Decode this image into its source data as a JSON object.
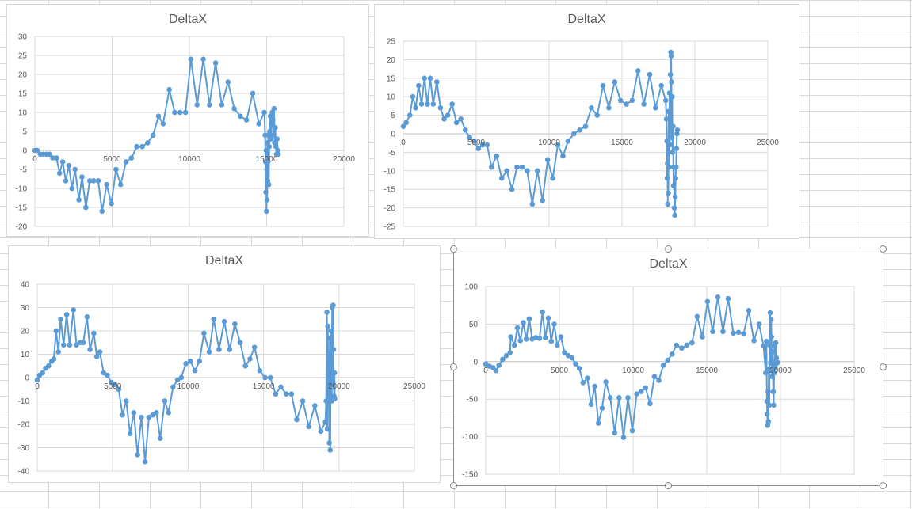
{
  "colors": {
    "series": "#5b9bd5",
    "grid": "#d9d9d9",
    "text": "#595959"
  },
  "chart_data": [
    {
      "type": "scatter",
      "title": "DeltaX",
      "xlabel": "",
      "ylabel": "",
      "xlim": [
        0,
        20000
      ],
      "ylim": [
        -20,
        30
      ],
      "xticks": [
        0,
        5000,
        10000,
        15000,
        20000
      ],
      "yticks": [
        -20,
        -15,
        -10,
        -5,
        0,
        5,
        10,
        15,
        20,
        25,
        30
      ],
      "grid": true,
      "legend": "none",
      "points": [
        [
          0,
          0
        ],
        [
          150,
          0
        ],
        [
          350,
          -1
        ],
        [
          550,
          -1
        ],
        [
          750,
          -1
        ],
        [
          950,
          -1
        ],
        [
          1150,
          -2
        ],
        [
          1400,
          -2
        ],
        [
          1600,
          -6
        ],
        [
          1800,
          -3
        ],
        [
          2000,
          -8
        ],
        [
          2200,
          -4
        ],
        [
          2400,
          -10
        ],
        [
          2600,
          -5
        ],
        [
          2850,
          -13
        ],
        [
          3050,
          -7
        ],
        [
          3300,
          -15
        ],
        [
          3550,
          -8
        ],
        [
          3800,
          -8
        ],
        [
          4100,
          -8
        ],
        [
          4350,
          -16
        ],
        [
          4650,
          -9
        ],
        [
          4950,
          -14
        ],
        [
          5250,
          -5
        ],
        [
          5550,
          -9
        ],
        [
          5900,
          -3
        ],
        [
          6250,
          -2
        ],
        [
          6600,
          1
        ],
        [
          6950,
          1
        ],
        [
          7300,
          2
        ],
        [
          7650,
          4
        ],
        [
          8000,
          9
        ],
        [
          8300,
          7
        ],
        [
          8700,
          16
        ],
        [
          9050,
          10
        ],
        [
          9400,
          10
        ],
        [
          9750,
          10
        ],
        [
          10100,
          24
        ],
        [
          10500,
          12
        ],
        [
          10900,
          24
        ],
        [
          11300,
          12
        ],
        [
          11700,
          23
        ],
        [
          12100,
          12
        ],
        [
          12500,
          18
        ],
        [
          12900,
          11
        ],
        [
          13300,
          9
        ],
        [
          13700,
          8
        ],
        [
          14100,
          15
        ],
        [
          14500,
          7
        ],
        [
          14850,
          10
        ],
        [
          14900,
          4
        ],
        [
          14930,
          -3
        ],
        [
          14950,
          -11
        ],
        [
          14970,
          0
        ],
        [
          14990,
          -16
        ],
        [
          15010,
          -5
        ],
        [
          15030,
          -13
        ],
        [
          15050,
          2
        ],
        [
          15070,
          -8
        ],
        [
          15090,
          -3
        ],
        [
          15110,
          4
        ],
        [
          15140,
          -9
        ],
        [
          15170,
          1
        ],
        [
          15200,
          5
        ],
        [
          15240,
          9
        ],
        [
          15280,
          3
        ],
        [
          15320,
          7
        ],
        [
          15360,
          10
        ],
        [
          15400,
          8
        ],
        [
          15440,
          4
        ],
        [
          15480,
          11
        ],
        [
          15520,
          2
        ],
        [
          15560,
          6
        ],
        [
          15600,
          1
        ],
        [
          15640,
          -1
        ],
        [
          15680,
          3
        ],
        [
          15720,
          0
        ],
        [
          15750,
          -1
        ]
      ]
    },
    {
      "type": "scatter",
      "title": "DeltaX",
      "xlabel": "",
      "ylabel": "",
      "xlim": [
        0,
        25000
      ],
      "ylim": [
        -25,
        25
      ],
      "xticks": [
        0,
        5000,
        10000,
        15000,
        20000,
        25000
      ],
      "yticks": [
        -25,
        -20,
        -15,
        -10,
        -5,
        0,
        5,
        10,
        15,
        20,
        25
      ],
      "grid": true,
      "legend": "none",
      "points": [
        [
          0,
          2
        ],
        [
          200,
          3
        ],
        [
          450,
          5
        ],
        [
          650,
          10
        ],
        [
          850,
          7
        ],
        [
          1050,
          13
        ],
        [
          1250,
          8
        ],
        [
          1450,
          15
        ],
        [
          1650,
          8
        ],
        [
          1850,
          15
        ],
        [
          2050,
          8
        ],
        [
          2300,
          14
        ],
        [
          2550,
          7
        ],
        [
          2800,
          4
        ],
        [
          3050,
          5
        ],
        [
          3350,
          8
        ],
        [
          3650,
          3
        ],
        [
          3950,
          4
        ],
        [
          4250,
          1
        ],
        [
          4550,
          -1
        ],
        [
          4850,
          -2
        ],
        [
          5150,
          -4
        ],
        [
          5450,
          -3
        ],
        [
          5750,
          -3
        ],
        [
          6050,
          -9
        ],
        [
          6400,
          -6
        ],
        [
          6750,
          -12
        ],
        [
          7100,
          -10
        ],
        [
          7450,
          -15
        ],
        [
          7800,
          -9
        ],
        [
          8150,
          -9
        ],
        [
          8500,
          -10
        ],
        [
          8850,
          -19
        ],
        [
          9200,
          -10
        ],
        [
          9550,
          -18
        ],
        [
          9900,
          -7
        ],
        [
          10250,
          -12
        ],
        [
          10600,
          -3
        ],
        [
          10950,
          -6
        ],
        [
          11300,
          -2
        ],
        [
          11700,
          0
        ],
        [
          12100,
          1
        ],
        [
          12500,
          2
        ],
        [
          12900,
          7
        ],
        [
          13300,
          5
        ],
        [
          13700,
          13
        ],
        [
          14100,
          7
        ],
        [
          14500,
          14
        ],
        [
          14900,
          9
        ],
        [
          15300,
          8
        ],
        [
          15700,
          9
        ],
        [
          16100,
          17
        ],
        [
          16500,
          8
        ],
        [
          16900,
          16
        ],
        [
          17300,
          7
        ],
        [
          17700,
          13
        ],
        [
          18000,
          9
        ],
        [
          18050,
          4
        ],
        [
          18080,
          -2
        ],
        [
          18100,
          -12
        ],
        [
          18120,
          -8
        ],
        [
          18140,
          -19
        ],
        [
          18160,
          -5
        ],
        [
          18180,
          -16
        ],
        [
          18200,
          6
        ],
        [
          18230,
          -9
        ],
        [
          18260,
          11
        ],
        [
          18290,
          -3
        ],
        [
          18320,
          16
        ],
        [
          18350,
          22
        ],
        [
          18370,
          21
        ],
        [
          18390,
          14
        ],
        [
          18410,
          -1
        ],
        [
          18440,
          10
        ],
        [
          18470,
          -5
        ],
        [
          18500,
          2
        ],
        [
          18530,
          -14
        ],
        [
          18560,
          -9
        ],
        [
          18590,
          -20
        ],
        [
          18620,
          -22
        ],
        [
          18650,
          -17
        ],
        [
          18680,
          -12
        ],
        [
          18710,
          -9
        ],
        [
          18740,
          -4
        ],
        [
          18770,
          0
        ],
        [
          18800,
          1
        ]
      ]
    },
    {
      "type": "scatter",
      "title": "DeltaX",
      "xlabel": "",
      "ylabel": "",
      "xlim": [
        0,
        25000
      ],
      "ylim": [
        -40,
        40
      ],
      "xticks": [
        0,
        5000,
        10000,
        15000,
        20000,
        25000
      ],
      "yticks": [
        -40,
        -30,
        -20,
        -10,
        0,
        10,
        20,
        30,
        40
      ],
      "grid": true,
      "legend": "none",
      "points": [
        [
          0,
          -1
        ],
        [
          150,
          1
        ],
        [
          350,
          2
        ],
        [
          550,
          4
        ],
        [
          750,
          5
        ],
        [
          950,
          7
        ],
        [
          1100,
          8
        ],
        [
          1250,
          20
        ],
        [
          1400,
          11
        ],
        [
          1550,
          25
        ],
        [
          1750,
          14
        ],
        [
          1950,
          27
        ],
        [
          2150,
          14
        ],
        [
          2400,
          29
        ],
        [
          2600,
          14
        ],
        [
          2850,
          15
        ],
        [
          3050,
          15
        ],
        [
          3300,
          26
        ],
        [
          3500,
          12
        ],
        [
          3750,
          19
        ],
        [
          3950,
          9
        ],
        [
          4150,
          11
        ],
        [
          4400,
          2
        ],
        [
          4650,
          1
        ],
        [
          4900,
          -2
        ],
        [
          5150,
          -3
        ],
        [
          5400,
          -5
        ],
        [
          5650,
          -16
        ],
        [
          5900,
          -10
        ],
        [
          6150,
          -24
        ],
        [
          6400,
          -15
        ],
        [
          6650,
          -33
        ],
        [
          6900,
          -17
        ],
        [
          7150,
          -36
        ],
        [
          7400,
          -17
        ],
        [
          7650,
          -16
        ],
        [
          7900,
          -15
        ],
        [
          8150,
          -26
        ],
        [
          8450,
          -10
        ],
        [
          8700,
          -15
        ],
        [
          9000,
          -4
        ],
        [
          9300,
          -1
        ],
        [
          9550,
          0
        ],
        [
          9850,
          6
        ],
        [
          10150,
          7
        ],
        [
          10450,
          3
        ],
        [
          10750,
          7
        ],
        [
          11050,
          19
        ],
        [
          11400,
          11
        ],
        [
          11700,
          25
        ],
        [
          12050,
          12
        ],
        [
          12400,
          24
        ],
        [
          12750,
          12
        ],
        [
          13100,
          23
        ],
        [
          13450,
          15
        ],
        [
          13800,
          5
        ],
        [
          14100,
          8
        ],
        [
          14400,
          13
        ],
        [
          14750,
          3
        ],
        [
          15100,
          0
        ],
        [
          15450,
          0
        ],
        [
          15800,
          -7
        ],
        [
          16150,
          -4
        ],
        [
          16500,
          -7
        ],
        [
          16850,
          -7
        ],
        [
          17200,
          -18
        ],
        [
          17600,
          -10
        ],
        [
          18000,
          -21
        ],
        [
          18400,
          -12
        ],
        [
          18800,
          -23
        ],
        [
          19100,
          -19
        ],
        [
          19150,
          -10
        ],
        [
          19200,
          28
        ],
        [
          19230,
          -22
        ],
        [
          19260,
          22
        ],
        [
          19290,
          -5
        ],
        [
          19320,
          10
        ],
        [
          19360,
          -28
        ],
        [
          19390,
          17
        ],
        [
          19420,
          -31
        ],
        [
          19450,
          5
        ],
        [
          19480,
          20
        ],
        [
          19520,
          -10
        ],
        [
          19550,
          30
        ],
        [
          19580,
          -3
        ],
        [
          19610,
          31
        ],
        [
          19640,
          12
        ],
        [
          19670,
          -8
        ],
        [
          19700,
          2
        ],
        [
          19720,
          -9
        ]
      ]
    },
    {
      "type": "scatter",
      "title": "DeltaX",
      "xlabel": "",
      "ylabel": "",
      "xlim": [
        0,
        25000
      ],
      "ylim": [
        -150,
        100
      ],
      "xticks": [
        0,
        5000,
        10000,
        15000,
        20000,
        25000
      ],
      "yticks": [
        -150,
        -100,
        -50,
        0,
        50,
        100
      ],
      "grid": true,
      "legend": "none",
      "points": [
        [
          0,
          -3
        ],
        [
          250,
          -6
        ],
        [
          500,
          -8
        ],
        [
          700,
          -12
        ],
        [
          900,
          -5
        ],
        [
          1150,
          3
        ],
        [
          1400,
          8
        ],
        [
          1650,
          12
        ],
        [
          1700,
          33
        ],
        [
          1950,
          22
        ],
        [
          2150,
          45
        ],
        [
          2350,
          28
        ],
        [
          2550,
          52
        ],
        [
          2750,
          30
        ],
        [
          2950,
          57
        ],
        [
          3150,
          30
        ],
        [
          3400,
          32
        ],
        [
          3650,
          31
        ],
        [
          3850,
          66
        ],
        [
          4050,
          32
        ],
        [
          4250,
          58
        ],
        [
          4450,
          27
        ],
        [
          4650,
          50
        ],
        [
          4850,
          22
        ],
        [
          5100,
          33
        ],
        [
          5350,
          12
        ],
        [
          5600,
          8
        ],
        [
          5850,
          5
        ],
        [
          6100,
          -3
        ],
        [
          6350,
          -9
        ],
        [
          6600,
          -28
        ],
        [
          6900,
          -22
        ],
        [
          7150,
          -57
        ],
        [
          7400,
          -33
        ],
        [
          7650,
          -82
        ],
        [
          7900,
          -62
        ],
        [
          8150,
          -27
        ],
        [
          8450,
          -48
        ],
        [
          8750,
          -95
        ],
        [
          9050,
          -48
        ],
        [
          9350,
          -101
        ],
        [
          9650,
          -48
        ],
        [
          9950,
          -92
        ],
        [
          10250,
          -43
        ],
        [
          10550,
          -40
        ],
        [
          10850,
          -35
        ],
        [
          11150,
          -56
        ],
        [
          11450,
          -20
        ],
        [
          11750,
          -25
        ],
        [
          12050,
          -5
        ],
        [
          12350,
          2
        ],
        [
          12650,
          10
        ],
        [
          12950,
          22
        ],
        [
          13300,
          18
        ],
        [
          13650,
          22
        ],
        [
          14000,
          25
        ],
        [
          14350,
          60
        ],
        [
          14700,
          33
        ],
        [
          15050,
          80
        ],
        [
          15400,
          40
        ],
        [
          15750,
          86
        ],
        [
          16100,
          40
        ],
        [
          16450,
          84
        ],
        [
          16800,
          38
        ],
        [
          17150,
          39
        ],
        [
          17500,
          37
        ],
        [
          17850,
          68
        ],
        [
          18200,
          28
        ],
        [
          18550,
          50
        ],
        [
          18850,
          21
        ],
        [
          19000,
          -15
        ],
        [
          19050,
          27
        ],
        [
          19080,
          -53
        ],
        [
          19100,
          -70
        ],
        [
          19130,
          -85
        ],
        [
          19160,
          -40
        ],
        [
          19180,
          -80
        ],
        [
          19210,
          -10
        ],
        [
          19240,
          -58
        ],
        [
          19270,
          22
        ],
        [
          19300,
          65
        ],
        [
          19330,
          -2
        ],
        [
          19360,
          56
        ],
        [
          19390,
          33
        ],
        [
          19420,
          -20
        ],
        [
          19450,
          13
        ],
        [
          19480,
          -3
        ],
        [
          19510,
          -40
        ],
        [
          19540,
          -58
        ],
        [
          19570,
          -15
        ],
        [
          19600,
          20
        ],
        [
          19640,
          -8
        ],
        [
          19680,
          25
        ],
        [
          19720,
          5
        ],
        [
          19760,
          -2
        ],
        [
          19800,
          -1
        ]
      ]
    }
  ]
}
